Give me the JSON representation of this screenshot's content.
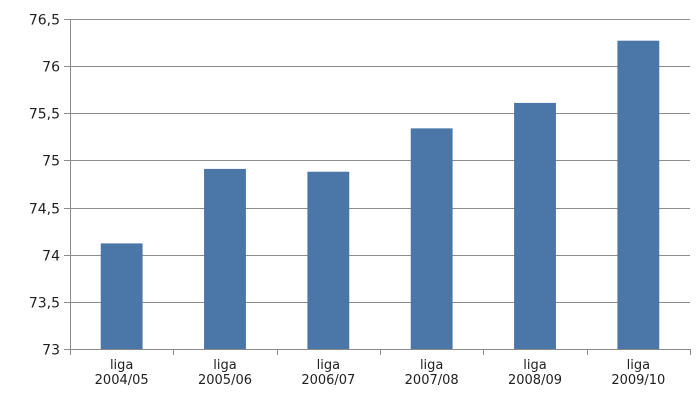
{
  "chart_data": {
    "type": "bar",
    "title": "",
    "xlabel": "",
    "ylabel": "",
    "categories": [
      [
        "liga",
        "2004/05"
      ],
      [
        "liga",
        "2005/06"
      ],
      [
        "liga",
        "2006/07"
      ],
      [
        "liga",
        "2007/08"
      ],
      [
        "liga",
        "2008/09"
      ],
      [
        "liga",
        "2009/10"
      ]
    ],
    "values": [
      74.12,
      74.91,
      74.88,
      75.34,
      75.61,
      76.27
    ],
    "ylim": [
      73,
      76.5
    ],
    "yticks": [
      73,
      73.5,
      74,
      74.5,
      75,
      75.5,
      76,
      76.5
    ],
    "ytick_labels": [
      "73",
      "73,5",
      "74",
      "74,5",
      "75",
      "75,5",
      "76",
      "76,5"
    ],
    "grid": true,
    "legend": "none",
    "colors": {
      "bar": "#4a76a8",
      "grid": "#8c8c8c",
      "axis": "#8c8c8c",
      "text": "#1f1f1f"
    }
  }
}
